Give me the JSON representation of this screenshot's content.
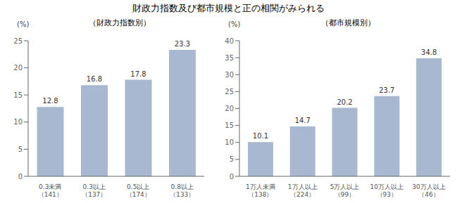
{
  "title": "財政力指数及び都市規模と正の相関がみられる",
  "chart_data": [
    {
      "type": "bar",
      "subtitle": "（財政力指数別）",
      "y_label": "(%)",
      "categories": [
        "0.3未満\n（141）",
        "0.3以上\n（137）",
        "0.5以上\n（174）",
        "0.8以上\n（133）"
      ],
      "values": [
        12.8,
        16.8,
        17.8,
        23.3
      ],
      "color": "#a8b8d0",
      "ylim": [
        0,
        25
      ],
      "yticks": [
        0,
        5,
        10,
        15,
        20,
        25
      ],
      "data_labels": true
    },
    {
      "type": "bar",
      "subtitle": "（都市規模別）",
      "y_label": "(%)",
      "categories": [
        "1万人未満\n（138）",
        "1万人以上\n（224）",
        "5万人以上\n（99）",
        "10万人以上\n（93）",
        "30万人以上\n（46）"
      ],
      "values": [
        10.1,
        14.7,
        20.2,
        23.7,
        34.8
      ],
      "color": "#a8b8d0",
      "ylim": [
        0,
        40
      ],
      "yticks": [
        0,
        5,
        10,
        15,
        20,
        25,
        30,
        35,
        40
      ],
      "data_labels": true
    }
  ]
}
